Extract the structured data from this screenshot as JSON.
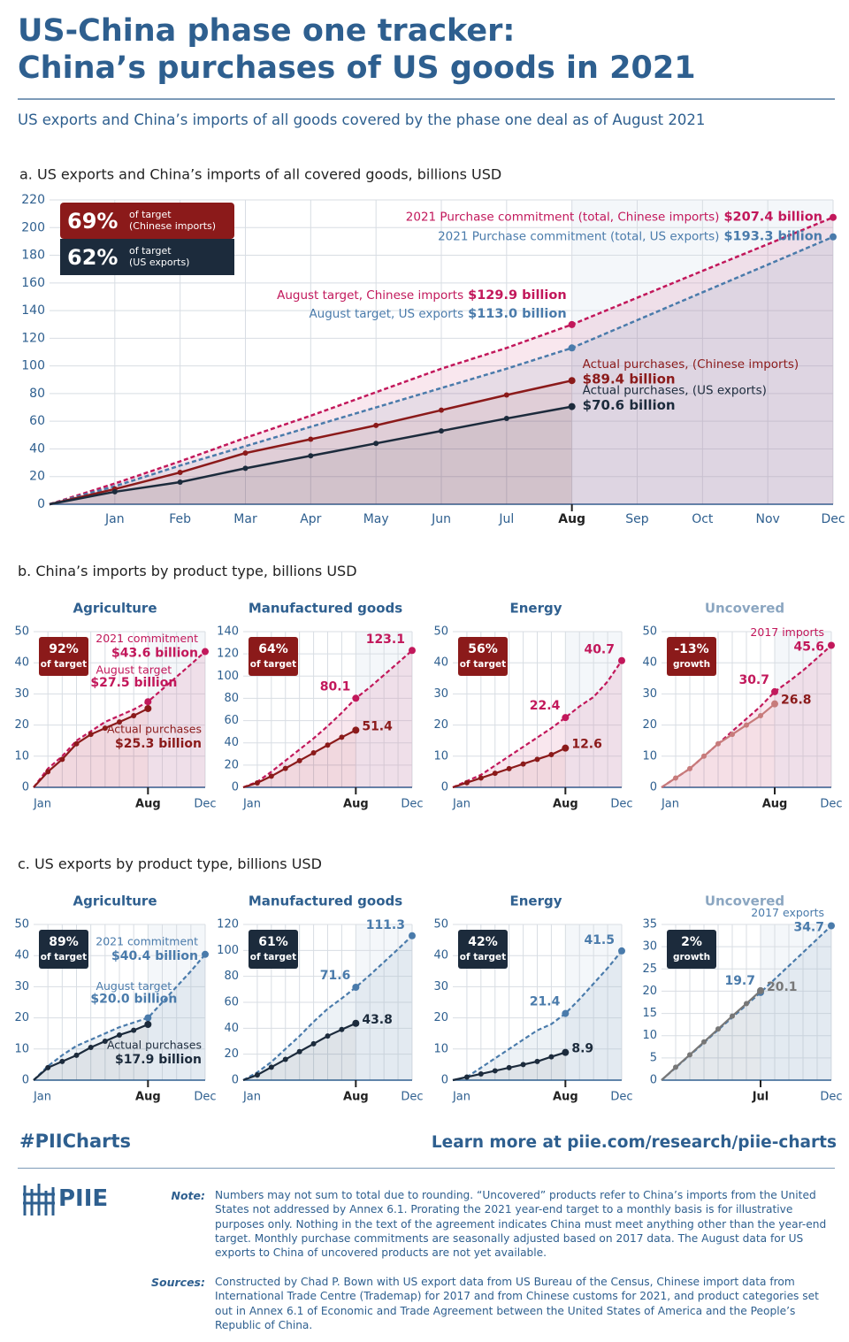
{
  "header": {
    "title_line1": "US-China phase one tracker:",
    "title_line2": "China’s purchases of US goods in 2021",
    "subtitle": "US exports and China’s imports of all goods covered by the phase one deal as of August 2021"
  },
  "sections": {
    "b": "b. China’s imports by product type, billions USD",
    "c": "c. US exports by product type, billions USD"
  },
  "footer": {
    "hashtag": "#PIICharts",
    "link": "Learn more at piie.com/research/piie-charts",
    "logo": "PIIE",
    "note_label": "Note:",
    "note": "Numbers may not sum to total due to rounding. “Uncovered” products refer to China’s imports from the United States not addressed by Annex 6.1. Prorating the 2021 year-end target to a monthly basis is for illustrative purposes only. Nothing in the text of the agreement indicates China must meet anything other than the year-end target. Monthly purchase commitments are seasonally adjusted based on 2017 data. The August data for US exports to China of uncovered products are not yet available.",
    "sources_label": "Sources:",
    "sources": "Constructed by Chad P. Bown with US export data from US Bureau of the Census, Chinese import data from International Trade Centre (Trademap) for 2017 and from Chinese customs for 2021, and product categories set out in Annex 6.1 of Economic and Trade Agreement between the United States of America and the People’s Republic of China."
  },
  "chart_data": [
    {
      "type": "line",
      "title": "a. US exports and China’s imports of all covered goods, billions USD",
      "badges": [
        {
          "label": "69%",
          "text": "of target",
          "sub": "(Chinese imports)",
          "color": "#8b1a1a"
        },
        {
          "label": "62%",
          "text": "of target",
          "sub": "(US exports)",
          "color": "#1c2b3c"
        }
      ],
      "categories": [
        null,
        "Jan",
        "Feb",
        "Mar",
        "Apr",
        "May",
        "Jun",
        "Jul",
        "Aug",
        "Sep",
        "Oct",
        "Nov",
        "Dec"
      ],
      "ylim": [
        0,
        220
      ],
      "yticks": [
        0,
        20,
        40,
        60,
        80,
        100,
        120,
        140,
        160,
        180,
        200,
        220
      ],
      "grid": true,
      "series": [
        {
          "name": "August target, Chinese imports",
          "end_name": "2021 Purchase commitment (total, Chinese imports)",
          "color": "#c2185b",
          "dashed": true,
          "values": [
            0,
            15,
            31,
            48,
            64,
            81,
            98,
            113,
            129.9,
            149.3,
            168.7,
            188,
            207.4
          ],
          "value_labels": [
            null,
            null,
            null,
            null,
            null,
            null,
            null,
            null,
            "$129.9 billion",
            null,
            null,
            null,
            "$207.4 billion"
          ]
        },
        {
          "name": "August target, US exports",
          "end_name": "2021 Purchase commitment (total, US exports)",
          "color": "#4a7bab",
          "dashed": true,
          "values": [
            0,
            13,
            28,
            42,
            56,
            70,
            84,
            98,
            113.0,
            133.1,
            153.2,
            173.2,
            193.3
          ],
          "value_labels": [
            null,
            null,
            null,
            null,
            null,
            null,
            null,
            null,
            "$113.0 billion",
            null,
            null,
            null,
            "$193.3 billion"
          ]
        },
        {
          "name": "Actual purchases, (Chinese imports)",
          "color": "#8b1a1a",
          "values": [
            0,
            11,
            23,
            37,
            47,
            57,
            68,
            79,
            89.4,
            null,
            null,
            null,
            null
          ],
          "value_labels": [
            null,
            null,
            null,
            null,
            null,
            null,
            null,
            null,
            "$89.4 billion",
            null,
            null,
            null,
            null
          ]
        },
        {
          "name": "Actual purchases, (US exports)",
          "color": "#1c2b3c",
          "values": [
            0,
            9,
            16,
            26,
            35,
            44,
            53,
            62,
            70.6,
            null,
            null,
            null,
            null
          ],
          "value_labels": [
            null,
            null,
            null,
            null,
            null,
            null,
            null,
            null,
            "$70.6 billion",
            null,
            null,
            null,
            null
          ]
        }
      ]
    },
    {
      "type": "line",
      "title": "Agriculture",
      "badge": {
        "label": "92%",
        "text": "of target",
        "color": "#8b1a1a"
      },
      "categories": [
        "Jan",
        null,
        null,
        null,
        null,
        null,
        null,
        null,
        "Aug",
        null,
        null,
        null,
        "Dec"
      ],
      "ylim": [
        0,
        50
      ],
      "yticks": [
        0,
        10,
        20,
        30,
        40,
        50
      ],
      "grid": true,
      "series": [
        {
          "name": "August target",
          "end_name": "2021 commitment",
          "color": "#c2185b",
          "dashed": true,
          "values": [
            0,
            6,
            10,
            15,
            18,
            21,
            23,
            25,
            27.5,
            31.5,
            35.5,
            39.5,
            43.6
          ],
          "value_labels": [
            null,
            null,
            null,
            null,
            null,
            null,
            null,
            null,
            "$27.5 billion",
            null,
            null,
            null,
            "$43.6 billion"
          ]
        },
        {
          "name": "Actual purchases",
          "color": "#8b1a1a",
          "values": [
            0,
            5,
            9,
            14,
            17,
            19,
            21,
            23,
            25.3,
            null,
            null,
            null,
            null
          ],
          "value_labels": [
            null,
            null,
            null,
            null,
            null,
            null,
            null,
            null,
            "$25.3 billion",
            null,
            null,
            null,
            null
          ]
        }
      ]
    },
    {
      "type": "line",
      "title": "Manufactured goods",
      "badge": {
        "label": "64%",
        "text": "of target",
        "color": "#8b1a1a"
      },
      "categories": [
        "Jan",
        null,
        null,
        null,
        null,
        null,
        null,
        null,
        "Aug",
        null,
        null,
        null,
        "Dec"
      ],
      "ylim": [
        0,
        140
      ],
      "yticks": [
        0,
        20,
        40,
        60,
        80,
        100,
        120,
        140
      ],
      "grid": true,
      "series": [
        {
          "color": "#c2185b",
          "dashed": true,
          "values": [
            0,
            5,
            14,
            24,
            34,
            44,
            55,
            67,
            80.1,
            90,
            101,
            112,
            123.1
          ],
          "value_labels": [
            null,
            null,
            null,
            null,
            null,
            null,
            null,
            null,
            "80.1",
            null,
            null,
            null,
            "123.1"
          ]
        },
        {
          "color": "#8b1a1a",
          "values": [
            0,
            4,
            10,
            17,
            24,
            31,
            38,
            45,
            51.4,
            null,
            null,
            null,
            null
          ],
          "value_labels": [
            null,
            null,
            null,
            null,
            null,
            null,
            null,
            null,
            "51.4",
            null,
            null,
            null,
            null
          ]
        }
      ]
    },
    {
      "type": "line",
      "title": "Energy",
      "badge": {
        "label": "56%",
        "text": "of target",
        "color": "#8b1a1a"
      },
      "categories": [
        "Jan",
        null,
        null,
        null,
        null,
        null,
        null,
        null,
        "Aug",
        null,
        null,
        null,
        "Dec"
      ],
      "ylim": [
        0,
        50
      ],
      "yticks": [
        0,
        10,
        20,
        30,
        40,
        50
      ],
      "grid": true,
      "series": [
        {
          "color": "#c2185b",
          "dashed": true,
          "values": [
            0,
            2,
            4,
            7,
            10,
            13,
            16,
            19,
            22.4,
            26,
            29,
            34,
            40.7
          ],
          "value_labels": [
            null,
            null,
            null,
            null,
            null,
            null,
            null,
            null,
            "22.4",
            null,
            null,
            null,
            "40.7"
          ]
        },
        {
          "color": "#8b1a1a",
          "values": [
            0,
            1.5,
            3,
            4.5,
            6,
            7.5,
            9,
            10.5,
            12.6,
            null,
            null,
            null,
            null
          ],
          "value_labels": [
            null,
            null,
            null,
            null,
            null,
            null,
            null,
            null,
            "12.6",
            null,
            null,
            null,
            null
          ]
        }
      ]
    },
    {
      "type": "line",
      "title": "Uncovered",
      "badge": {
        "label": "-13%",
        "text": "growth",
        "color": "#8b1a1a"
      },
      "categories": [
        "Jan",
        null,
        null,
        null,
        null,
        null,
        null,
        null,
        "Aug",
        null,
        null,
        null,
        "Dec"
      ],
      "ylim": [
        0,
        50
      ],
      "yticks": [
        0,
        10,
        20,
        30,
        40,
        50
      ],
      "grid": true,
      "series": [
        {
          "end_name": "2017 imports",
          "color": "#c2185b",
          "dashed": true,
          "values": [
            0,
            3,
            6,
            10,
            14,
            18,
            22,
            26,
            30.7,
            34,
            37.5,
            41.5,
            45.6
          ],
          "value_labels": [
            null,
            null,
            null,
            null,
            null,
            null,
            null,
            null,
            "30.7",
            null,
            null,
            null,
            "45.6"
          ]
        },
        {
          "color": "#c77b7b",
          "values": [
            0,
            3,
            6,
            10,
            14,
            17,
            20,
            23,
            26.8,
            null,
            null,
            null,
            null
          ],
          "value_labels": [
            null,
            null,
            null,
            null,
            null,
            null,
            null,
            null,
            "26.8",
            null,
            null,
            null,
            null
          ]
        }
      ]
    },
    {
      "type": "line",
      "title": "Agriculture",
      "badge": {
        "label": "89%",
        "text": "of target",
        "color": "#1c2b3c"
      },
      "categories": [
        "Jan",
        null,
        null,
        null,
        null,
        null,
        null,
        null,
        "Aug",
        null,
        null,
        null,
        "Dec"
      ],
      "ylim": [
        0,
        50
      ],
      "yticks": [
        0,
        10,
        20,
        30,
        40,
        50
      ],
      "grid": true,
      "series": [
        {
          "name": "August target",
          "end_name": "2021 commitment",
          "color": "#4a7bab",
          "dashed": true,
          "values": [
            0,
            4.5,
            8,
            11,
            13,
            15,
            17,
            18.5,
            20.0,
            25,
            30,
            35,
            40.4
          ],
          "value_labels": [
            null,
            null,
            null,
            null,
            null,
            null,
            null,
            null,
            "$20.0 billion",
            null,
            null,
            null,
            "$40.4 billion"
          ]
        },
        {
          "name": "Actual purchases",
          "color": "#1c2b3c",
          "values": [
            0,
            4,
            6,
            8,
            10.5,
            12.5,
            14.5,
            16,
            17.9,
            null,
            null,
            null,
            null
          ],
          "value_labels": [
            null,
            null,
            null,
            null,
            null,
            null,
            null,
            null,
            "$17.9 billion",
            null,
            null,
            null,
            null
          ]
        }
      ]
    },
    {
      "type": "line",
      "title": "Manufactured goods",
      "badge": {
        "label": "61%",
        "text": "of target",
        "color": "#1c2b3c"
      },
      "categories": [
        "Jan",
        null,
        null,
        null,
        null,
        null,
        null,
        null,
        "Aug",
        null,
        null,
        null,
        "Dec"
      ],
      "ylim": [
        0,
        120
      ],
      "yticks": [
        0,
        20,
        40,
        60,
        80,
        100,
        120
      ],
      "grid": true,
      "series": [
        {
          "color": "#4a7bab",
          "dashed": true,
          "values": [
            0,
            6,
            14,
            24,
            34,
            45,
            55,
            63,
            71.6,
            81,
            91,
            101,
            111.3
          ],
          "value_labels": [
            null,
            null,
            null,
            null,
            null,
            null,
            null,
            null,
            "71.6",
            null,
            null,
            null,
            "111.3"
          ]
        },
        {
          "color": "#1c2b3c",
          "values": [
            0,
            4,
            10,
            16,
            22,
            28,
            34,
            39,
            43.8,
            null,
            null,
            null,
            null
          ],
          "value_labels": [
            null,
            null,
            null,
            null,
            null,
            null,
            null,
            null,
            "43.8",
            null,
            null,
            null,
            null
          ]
        }
      ]
    },
    {
      "type": "line",
      "title": "Energy",
      "badge": {
        "label": "42%",
        "text": "of target",
        "color": "#1c2b3c"
      },
      "categories": [
        "Jan",
        null,
        null,
        null,
        null,
        null,
        null,
        null,
        "Aug",
        null,
        null,
        null,
        "Dec"
      ],
      "ylim": [
        0,
        50
      ],
      "yticks": [
        0,
        10,
        20,
        30,
        40,
        50
      ],
      "grid": true,
      "series": [
        {
          "color": "#4a7bab",
          "dashed": true,
          "values": [
            0,
            1,
            4,
            7,
            10,
            13,
            16,
            18,
            21.4,
            26,
            31,
            36,
            41.5
          ],
          "value_labels": [
            null,
            null,
            null,
            null,
            null,
            null,
            null,
            null,
            "21.4",
            null,
            null,
            null,
            "41.5"
          ]
        },
        {
          "color": "#1c2b3c",
          "values": [
            0,
            1,
            2,
            3,
            4,
            5,
            6,
            7.5,
            8.9,
            null,
            null,
            null,
            null
          ],
          "value_labels": [
            null,
            null,
            null,
            null,
            null,
            null,
            null,
            null,
            "8.9",
            null,
            null,
            null,
            null
          ]
        }
      ]
    },
    {
      "type": "line",
      "title": "Uncovered",
      "badge": {
        "label": "2%",
        "text": "growth",
        "color": "#1c2b3c"
      },
      "categories": [
        null,
        null,
        null,
        null,
        null,
        null,
        null,
        "Jul",
        null,
        null,
        null,
        null,
        "Dec"
      ],
      "ylim": [
        0,
        35
      ],
      "yticks": [
        0,
        5,
        10,
        15,
        20,
        25,
        30,
        35
      ],
      "grid": true,
      "series": [
        {
          "end_name": "2017 exports",
          "color": "#4a7bab",
          "dashed": true,
          "values": [
            0,
            2.8,
            5.6,
            8.4,
            11.3,
            14.1,
            16.9,
            19.7,
            22.7,
            25.7,
            28.7,
            31.7,
            34.7
          ],
          "value_labels": [
            null,
            null,
            null,
            null,
            null,
            null,
            null,
            "19.7",
            null,
            null,
            null,
            null,
            "34.7"
          ]
        },
        {
          "color": "#777777",
          "values": [
            0,
            2.9,
            5.7,
            8.6,
            11.5,
            14.4,
            17.2,
            20.1,
            null,
            null,
            null,
            null,
            null
          ],
          "value_labels": [
            null,
            null,
            null,
            null,
            null,
            null,
            null,
            "20.1",
            null,
            null,
            null,
            null,
            null
          ]
        }
      ]
    }
  ]
}
